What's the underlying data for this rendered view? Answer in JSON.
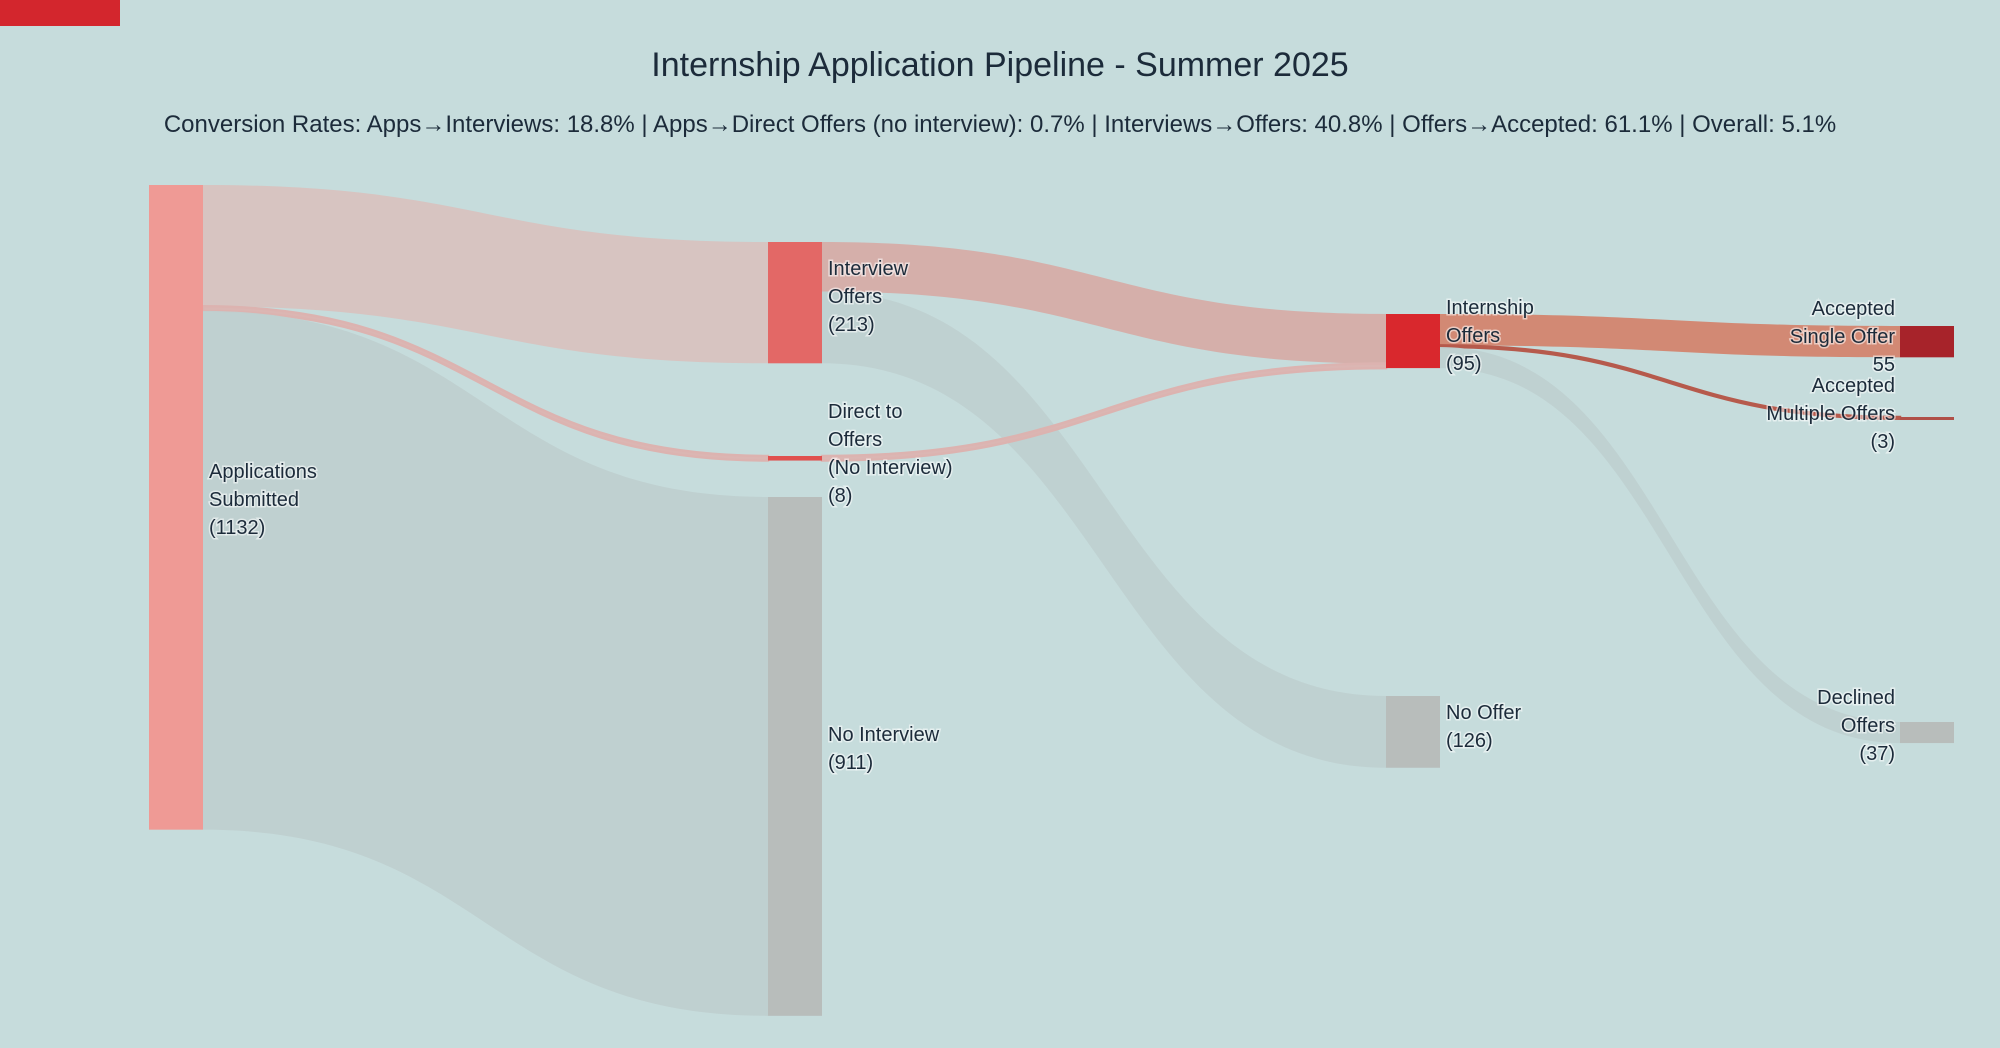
{
  "chart_data": {
    "type": "sankey",
    "title": "Internship Application Pipeline - Summer 2025",
    "subtitle": "Conversion Rates: Apps→Interviews: 18.8% | Apps→Direct Offers (no interview): 0.7% | Interviews→Offers: 40.8% | Offers→Accepted: 61.1% | Overall: 5.1%",
    "nodes": [
      {
        "id": "apps",
        "label_lines": [
          "Applications",
          "Submitted",
          "(1132)"
        ],
        "value": 1132,
        "color": "#ef9a95"
      },
      {
        "id": "interview",
        "label_lines": [
          "Interview",
          "Offers",
          "(213)"
        ],
        "value": 213,
        "color": "#e36866"
      },
      {
        "id": "direct",
        "label_lines": [
          "Direct to",
          "Offers",
          "(No Interview)",
          "(8)"
        ],
        "value": 8,
        "color": "#e0504e"
      },
      {
        "id": "nointerview",
        "label_lines": [
          "No Interview",
          "(911)"
        ],
        "value": 911,
        "color": "#b8bdbb"
      },
      {
        "id": "offers",
        "label_lines": [
          "Internship",
          "Offers",
          "(95)"
        ],
        "value": 95,
        "color": "#d9282d"
      },
      {
        "id": "nooffer",
        "label_lines": [
          "No Offer",
          "(126)"
        ],
        "value": 126,
        "color": "#b8bdbb"
      },
      {
        "id": "single",
        "label_lines": [
          "Accepted",
          "Single Offer",
          "55"
        ],
        "value": 55,
        "color": "#a7232a"
      },
      {
        "id": "multiple",
        "label_lines": [
          "Accepted",
          "Multiple Offers",
          "(3)"
        ],
        "value": 3,
        "color": "#b05048"
      },
      {
        "id": "declined",
        "label_lines": [
          "Declined",
          "Offers",
          "(37)"
        ],
        "value": 37,
        "color": "#b8bdbb"
      }
    ],
    "links": [
      {
        "source": "apps",
        "target": "interview",
        "value": 213,
        "color": "#d8c2bf"
      },
      {
        "source": "apps",
        "target": "direct",
        "value": 8,
        "color": "#dcb3b0"
      },
      {
        "source": "apps",
        "target": "nointerview",
        "value": 911,
        "color": "#bfcfcf"
      },
      {
        "source": "interview",
        "target": "offers",
        "value": 87,
        "color": "#d6aca7"
      },
      {
        "source": "interview",
        "target": "nooffer",
        "value": 126,
        "color": "#bfd0d0"
      },
      {
        "source": "direct",
        "target": "offers",
        "value": 8,
        "color": "#dcb3b0"
      },
      {
        "source": "offers",
        "target": "single",
        "value": 55,
        "color": "#d3846e"
      },
      {
        "source": "offers",
        "target": "multiple",
        "value": 3,
        "color": "#b65a4c"
      },
      {
        "source": "offers",
        "target": "declined",
        "value": 37,
        "color": "#bfd0d0"
      }
    ]
  }
}
